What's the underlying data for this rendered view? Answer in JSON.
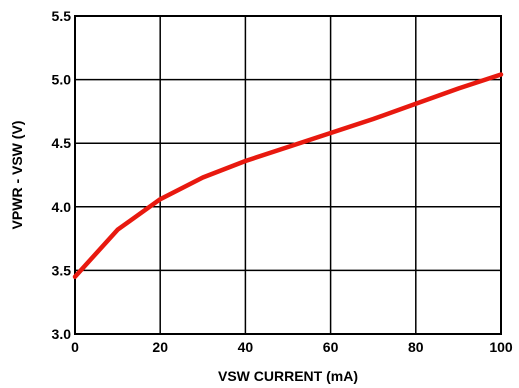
{
  "chart_data": {
    "type": "line",
    "title": "",
    "xlabel": "VSW CURRENT (mA)",
    "ylabel": "VPWR - VSW (V)",
    "xlim": [
      0,
      100
    ],
    "ylim": [
      3.0,
      5.5
    ],
    "x_ticks": [
      0,
      20,
      40,
      60,
      80,
      100
    ],
    "y_ticks": [
      3.0,
      3.5,
      4.0,
      4.5,
      5.0,
      5.5
    ],
    "x_tick_labels": [
      "0",
      "20",
      "40",
      "60",
      "80",
      "100"
    ],
    "y_tick_labels": [
      "3.0",
      "3.5",
      "4.0",
      "4.5",
      "5.0",
      "5.5"
    ],
    "grid": true,
    "series": [
      {
        "color": "#e8190f",
        "x": [
          0,
          10,
          20,
          30,
          40,
          50,
          60,
          70,
          80,
          90,
          100
        ],
        "y": [
          3.45,
          3.82,
          4.06,
          4.23,
          4.36,
          4.47,
          4.58,
          4.69,
          4.81,
          4.93,
          5.04
        ]
      }
    ]
  }
}
